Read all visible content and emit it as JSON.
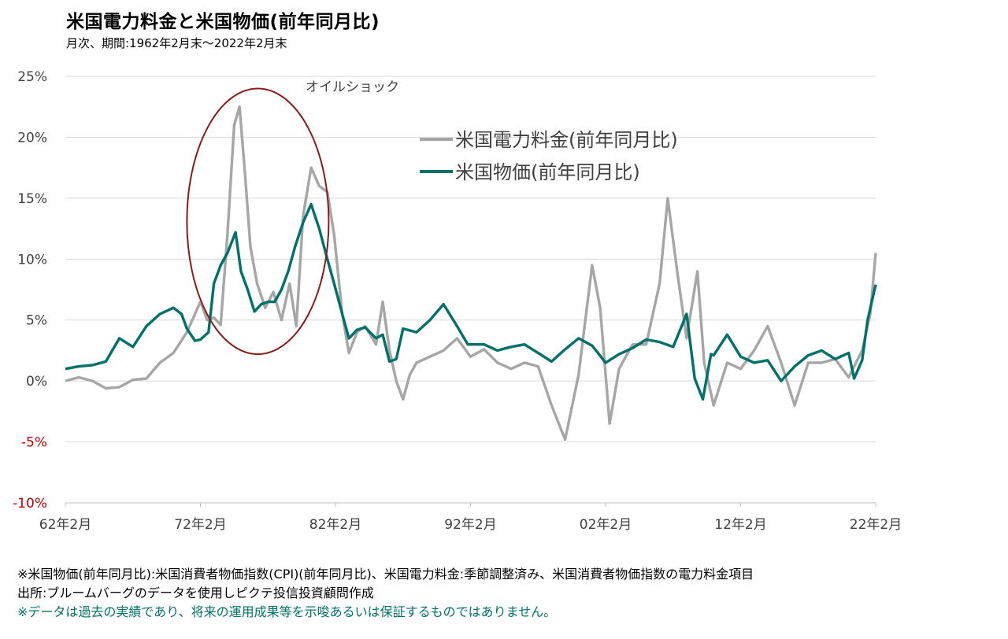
{
  "title": "米国電力料金と米国物価(前年同月比)",
  "subtitle": "月次、期間:1962年2月末〜2022年2月末",
  "annotation": "オイルショック",
  "notes": {
    "line1": "※米国物価(前年同月比):米国消費者物価指数(CPI)(前年同月比)、米国電力料金:季節調整済み、米国消費者物価指数の電力料金項目",
    "line2": "出所:ブルームバーグのデータを使用しピクテ投信投資顧問作成",
    "line3": "※データは過去の実績であり、将来の運用成果等を示唆あるいは保証するものではありません。"
  },
  "colors": {
    "electricity": "#a6a6a6",
    "cpi": "#00706b",
    "negative_tick": "#c00000",
    "ellipse": "#8b1a1a"
  },
  "chart_data": {
    "type": "line",
    "xlim": [
      1962.0,
      2022.0
    ],
    "ylim": [
      -10,
      25
    ],
    "y_ticks": [
      25,
      20,
      15,
      10,
      5,
      0,
      -5,
      -10
    ],
    "y_tick_labels": [
      "25%",
      "20%",
      "15%",
      "10%",
      "5%",
      "0%",
      "-5%",
      "-10%"
    ],
    "x_ticks": [
      1962,
      1972,
      1982,
      1992,
      2002,
      2012,
      2022
    ],
    "x_tick_labels": [
      "62年2月",
      "72年2月",
      "82年2月",
      "92年2月",
      "02年2月",
      "12年2月",
      "22年2月"
    ],
    "grid": true,
    "legend_position": "top-right",
    "annotation_region": {
      "x": [
        1971.0,
        1981.5
      ],
      "y": [
        2.2,
        24.0
      ]
    },
    "series": [
      {
        "name": "米国電力料金(前年同月比)",
        "points": [
          [
            1962.0,
            0
          ],
          [
            1963.0,
            0.3
          ],
          [
            1964.0,
            0
          ],
          [
            1965.0,
            -0.6
          ],
          [
            1966.0,
            -0.5
          ],
          [
            1967.0,
            0.1
          ],
          [
            1968.0,
            0.2
          ],
          [
            1969.0,
            1.5
          ],
          [
            1970.0,
            2.3
          ],
          [
            1971.0,
            4.0
          ],
          [
            1972.0,
            6.5
          ],
          [
            1972.5,
            5.0
          ],
          [
            1973.0,
            5.2
          ],
          [
            1973.5,
            4.6
          ],
          [
            1974.0,
            12.0
          ],
          [
            1974.5,
            21.0
          ],
          [
            1974.9,
            22.5
          ],
          [
            1975.3,
            17.0
          ],
          [
            1975.7,
            11.0
          ],
          [
            1976.2,
            8.0
          ],
          [
            1976.8,
            6.0
          ],
          [
            1977.4,
            7.3
          ],
          [
            1978.0,
            5.0
          ],
          [
            1978.6,
            8.0
          ],
          [
            1979.1,
            4.5
          ],
          [
            1979.6,
            13.5
          ],
          [
            1980.2,
            17.5
          ],
          [
            1980.8,
            16.0
          ],
          [
            1981.4,
            15.5
          ],
          [
            1981.9,
            12.0
          ],
          [
            1982.5,
            5.5
          ],
          [
            1983.0,
            2.3
          ],
          [
            1983.6,
            4.0
          ],
          [
            1984.2,
            4.5
          ],
          [
            1985.0,
            3.0
          ],
          [
            1985.5,
            6.5
          ],
          [
            1986.0,
            2.5
          ],
          [
            1986.5,
            0
          ],
          [
            1987.0,
            -1.5
          ],
          [
            1987.5,
            0.5
          ],
          [
            1988.0,
            1.5
          ],
          [
            1989.0,
            2.0
          ],
          [
            1990.0,
            2.5
          ],
          [
            1991.0,
            3.5
          ],
          [
            1992.0,
            2.0
          ],
          [
            1993.0,
            2.6
          ],
          [
            1994.0,
            1.5
          ],
          [
            1995.0,
            1.0
          ],
          [
            1996.0,
            1.5
          ],
          [
            1997.0,
            1.2
          ],
          [
            1998.0,
            -2.0
          ],
          [
            1999.0,
            -4.8
          ],
          [
            2000.0,
            0.5
          ],
          [
            2001.0,
            9.5
          ],
          [
            2001.6,
            6.0
          ],
          [
            2002.3,
            -3.5
          ],
          [
            2003.0,
            1.0
          ],
          [
            2004.0,
            3.0
          ],
          [
            2005.0,
            3.0
          ],
          [
            2006.0,
            8.0
          ],
          [
            2006.6,
            15.0
          ],
          [
            2007.3,
            9.0
          ],
          [
            2008.0,
            3.5
          ],
          [
            2008.8,
            9.0
          ],
          [
            2009.3,
            1.5
          ],
          [
            2010.0,
            -2.0
          ],
          [
            2011.0,
            1.5
          ],
          [
            2012.0,
            1.0
          ],
          [
            2013.0,
            2.5
          ],
          [
            2014.0,
            4.5
          ],
          [
            2015.0,
            1.5
          ],
          [
            2016.0,
            -2.0
          ],
          [
            2017.0,
            1.5
          ],
          [
            2018.0,
            1.5
          ],
          [
            2019.0,
            1.8
          ],
          [
            2020.0,
            0.3
          ],
          [
            2021.0,
            2.5
          ],
          [
            2021.6,
            5.5
          ],
          [
            2022.0,
            10.5
          ]
        ]
      },
      {
        "name": "米国物価(前年同月比)",
        "points": [
          [
            1962.0,
            1.0
          ],
          [
            1963.0,
            1.2
          ],
          [
            1964.0,
            1.3
          ],
          [
            1965.0,
            1.6
          ],
          [
            1966.0,
            3.5
          ],
          [
            1967.0,
            2.8
          ],
          [
            1968.0,
            4.5
          ],
          [
            1969.0,
            5.5
          ],
          [
            1970.0,
            6.0
          ],
          [
            1970.6,
            5.5
          ],
          [
            1971.0,
            4.3
          ],
          [
            1971.6,
            3.3
          ],
          [
            1972.0,
            3.4
          ],
          [
            1972.6,
            4.0
          ],
          [
            1973.0,
            8.0
          ],
          [
            1973.5,
            9.5
          ],
          [
            1974.0,
            10.5
          ],
          [
            1974.6,
            12.2
          ],
          [
            1975.0,
            9.0
          ],
          [
            1975.5,
            7.5
          ],
          [
            1976.0,
            5.7
          ],
          [
            1976.5,
            6.3
          ],
          [
            1977.0,
            6.5
          ],
          [
            1977.5,
            6.5
          ],
          [
            1978.0,
            7.5
          ],
          [
            1978.5,
            9.0
          ],
          [
            1979.0,
            11.0
          ],
          [
            1979.6,
            13.0
          ],
          [
            1980.2,
            14.5
          ],
          [
            1980.8,
            12.5
          ],
          [
            1981.4,
            10.0
          ],
          [
            1981.9,
            8.0
          ],
          [
            1982.5,
            5.5
          ],
          [
            1983.0,
            3.5
          ],
          [
            1983.6,
            4.2
          ],
          [
            1984.2,
            4.4
          ],
          [
            1985.0,
            3.5
          ],
          [
            1985.5,
            3.8
          ],
          [
            1986.0,
            1.6
          ],
          [
            1986.5,
            1.8
          ],
          [
            1987.0,
            4.3
          ],
          [
            1988.0,
            4.0
          ],
          [
            1989.0,
            5.0
          ],
          [
            1990.0,
            6.3
          ],
          [
            1991.0,
            4.5
          ],
          [
            1991.8,
            3.0
          ],
          [
            1992.0,
            3.0
          ],
          [
            1993.0,
            3.0
          ],
          [
            1994.0,
            2.5
          ],
          [
            1995.0,
            2.8
          ],
          [
            1996.0,
            3.0
          ],
          [
            1997.0,
            2.3
          ],
          [
            1998.0,
            1.6
          ],
          [
            1999.0,
            2.6
          ],
          [
            2000.0,
            3.5
          ],
          [
            2001.0,
            2.9
          ],
          [
            2002.0,
            1.5
          ],
          [
            2003.0,
            2.2
          ],
          [
            2004.0,
            2.7
          ],
          [
            2005.0,
            3.4
          ],
          [
            2006.0,
            3.2
          ],
          [
            2007.0,
            2.8
          ],
          [
            2008.0,
            5.5
          ],
          [
            2008.6,
            0.2
          ],
          [
            2009.2,
            -1.5
          ],
          [
            2009.8,
            2.2
          ],
          [
            2010.0,
            2.1
          ],
          [
            2011.0,
            3.8
          ],
          [
            2012.0,
            2.0
          ],
          [
            2013.0,
            1.5
          ],
          [
            2014.0,
            1.7
          ],
          [
            2015.0,
            0.0
          ],
          [
            2016.0,
            1.2
          ],
          [
            2017.0,
            2.1
          ],
          [
            2018.0,
            2.5
          ],
          [
            2019.0,
            1.8
          ],
          [
            2020.0,
            2.3
          ],
          [
            2020.4,
            0.2
          ],
          [
            2021.0,
            1.7
          ],
          [
            2021.4,
            5.0
          ],
          [
            2022.0,
            7.9
          ]
        ]
      }
    ]
  }
}
